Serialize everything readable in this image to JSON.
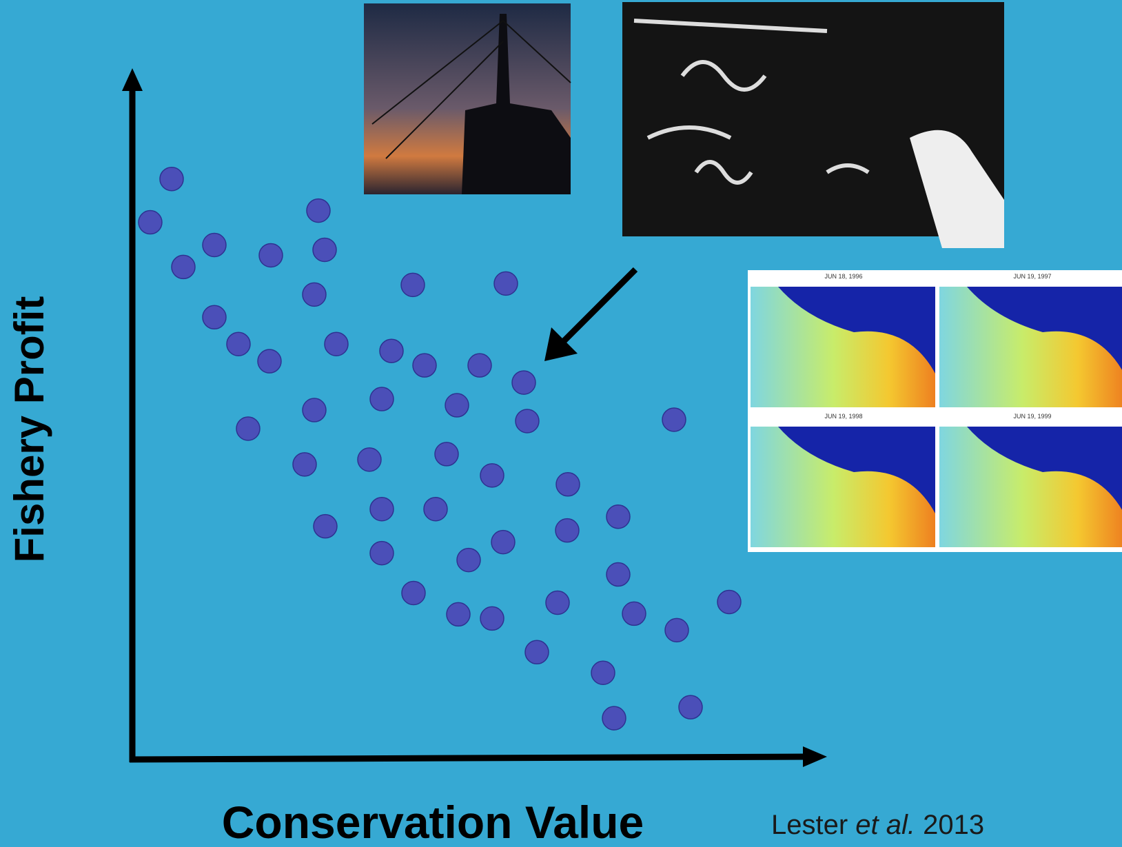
{
  "chart_data": {
    "type": "scatter",
    "x_label": "Conservation Value",
    "y_label": "Fishery Profit",
    "citation": {
      "author": "Lester",
      "etal": "et al.",
      "year": "2013"
    },
    "xlim": [
      0,
      100
    ],
    "ylim": [
      0,
      100
    ],
    "color": "#4b4fb8",
    "x": [
      5.5,
      2.4,
      7.2,
      11.7,
      19.9,
      26.8,
      27.7,
      26.2,
      11.7,
      15.2,
      19.7,
      29.4,
      40.5,
      54.0,
      37.4,
      42.2,
      50.2,
      56.6,
      26.2,
      36.0,
      46.9,
      57.1,
      78.4,
      16.6,
      24.8,
      34.2,
      45.4,
      52.0,
      63.0,
      27.8,
      36.0,
      43.8,
      53.6,
      62.9,
      70.3,
      36.0,
      48.6,
      70.3,
      40.6,
      47.1,
      52.0,
      61.5,
      72.6,
      78.8,
      86.4,
      58.5,
      68.1,
      69.7,
      80.8
    ],
    "values": [
      84.4,
      78.1,
      71.6,
      74.8,
      73.3,
      79.8,
      74.1,
      67.6,
      64.3,
      60.4,
      57.9,
      60.4,
      69.0,
      69.2,
      59.4,
      57.3,
      57.3,
      54.8,
      50.8,
      52.4,
      51.5,
      49.2,
      49.4,
      48.1,
      42.9,
      43.6,
      44.4,
      41.3,
      40.0,
      33.9,
      36.4,
      36.4,
      31.6,
      33.3,
      35.3,
      30.0,
      29.0,
      26.9,
      24.2,
      21.1,
      20.5,
      22.8,
      21.2,
      18.8,
      22.9,
      15.6,
      12.6,
      6.0,
      7.6
    ]
  },
  "map_panels": [
    "JUN 18, 1996",
    "JUN 19, 1997",
    "JUN 19, 1998",
    "JUN 19, 1999"
  ]
}
